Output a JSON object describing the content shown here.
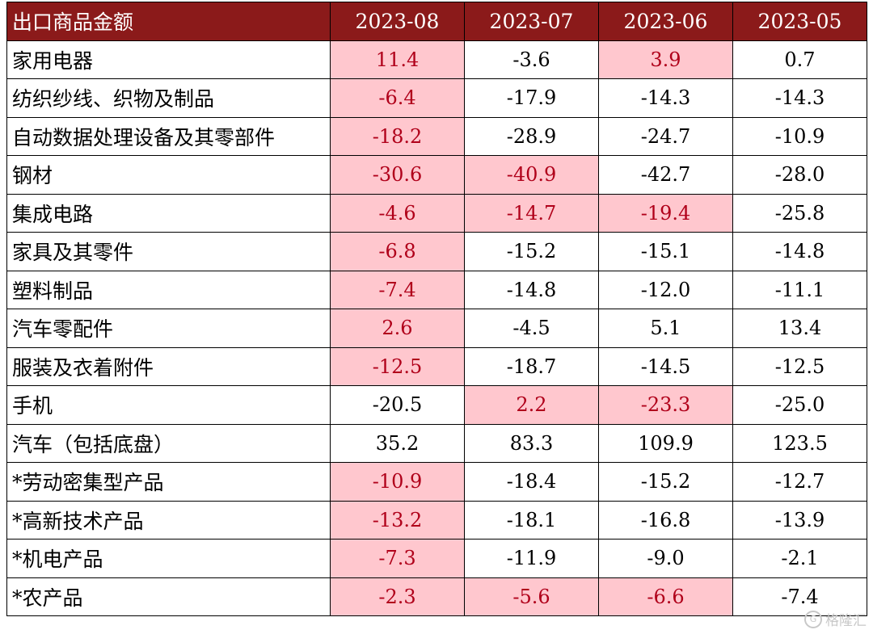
{
  "chart_data": {
    "type": "table",
    "header": [
      "出口商品金额",
      "2023-08",
      "2023-07",
      "2023-06",
      "2023-05"
    ],
    "rows": [
      {
        "label": "家用电器",
        "values": [
          "11.4",
          "-3.6",
          "3.9",
          "0.7"
        ],
        "highlight": [
          true,
          false,
          true,
          false
        ]
      },
      {
        "label": "纺织纱线、织物及制品",
        "values": [
          "-6.4",
          "-17.9",
          "-14.3",
          "-14.3"
        ],
        "highlight": [
          true,
          false,
          false,
          false
        ]
      },
      {
        "label": "自动数据处理设备及其零部件",
        "values": [
          "-18.2",
          "-28.9",
          "-24.7",
          "-10.9"
        ],
        "highlight": [
          true,
          false,
          false,
          false
        ]
      },
      {
        "label": "钢材",
        "values": [
          "-30.6",
          "-40.9",
          "-42.7",
          "-28.0"
        ],
        "highlight": [
          true,
          true,
          false,
          false
        ]
      },
      {
        "label": "集成电路",
        "values": [
          "-4.6",
          "-14.7",
          "-19.4",
          "-25.8"
        ],
        "highlight": [
          true,
          true,
          true,
          false
        ]
      },
      {
        "label": "家具及其零件",
        "values": [
          "-6.8",
          "-15.2",
          "-15.1",
          "-14.8"
        ],
        "highlight": [
          true,
          false,
          false,
          false
        ]
      },
      {
        "label": "塑料制品",
        "values": [
          "-7.4",
          "-14.8",
          "-12.0",
          "-11.1"
        ],
        "highlight": [
          true,
          false,
          false,
          false
        ]
      },
      {
        "label": "汽车零配件",
        "values": [
          "2.6",
          "-4.5",
          "5.1",
          "13.4"
        ],
        "highlight": [
          true,
          false,
          false,
          false
        ]
      },
      {
        "label": "服装及衣着附件",
        "values": [
          "-12.5",
          "-18.7",
          "-14.5",
          "-12.5"
        ],
        "highlight": [
          true,
          false,
          false,
          false
        ]
      },
      {
        "label": "手机",
        "values": [
          "-20.5",
          "2.2",
          "-23.3",
          "-25.0"
        ],
        "highlight": [
          false,
          true,
          true,
          false
        ]
      },
      {
        "label": "汽车（包括底盘）",
        "values": [
          "35.2",
          "83.3",
          "109.9",
          "123.5"
        ],
        "highlight": [
          false,
          false,
          false,
          false
        ]
      },
      {
        "label": "*劳动密集型产品",
        "values": [
          "-10.9",
          "-18.4",
          "-15.2",
          "-12.7"
        ],
        "highlight": [
          true,
          false,
          false,
          false
        ]
      },
      {
        "label": "*高新技术产品",
        "values": [
          "-13.2",
          "-18.1",
          "-16.8",
          "-13.9"
        ],
        "highlight": [
          true,
          false,
          false,
          false
        ]
      },
      {
        "label": "*机电产品",
        "values": [
          "-7.3",
          "-11.9",
          "-9.0",
          "-2.1"
        ],
        "highlight": [
          true,
          false,
          false,
          false
        ]
      },
      {
        "label": "*农产品",
        "values": [
          "-2.3",
          "-5.6",
          "-6.6",
          "-7.4"
        ],
        "highlight": [
          true,
          true,
          true,
          false
        ]
      }
    ]
  },
  "colors": {
    "header_bg": "#8b1a1a",
    "header_text": "#ffffff",
    "highlight_bg": "#ffc7ce",
    "highlight_text": "#b0001a"
  },
  "watermark": {
    "icon": "logo-icon",
    "text": "格隆汇"
  }
}
